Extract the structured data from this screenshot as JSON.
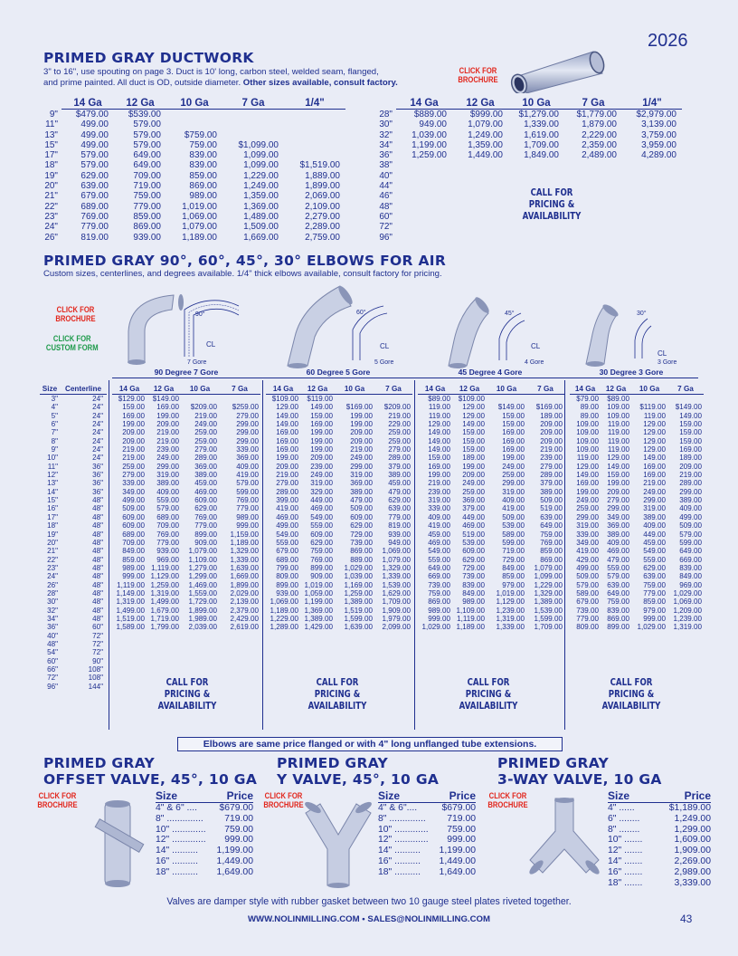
{
  "page": {
    "year": "2026",
    "page_number": "43",
    "footer": "WWW.NOLINMILLING.COM • SALES@NOLINMILLING.COM"
  },
  "ductwork": {
    "title": "PRIMED GRAY DUCTWORK",
    "desc1": "3\" to 16\", use spouting on page 3. Duct is 10' long, carbon steel, welded seam, flanged,",
    "desc2": "and prime painted. All duct is OD, outside diameter. ",
    "desc2_bold": "Other sizes available, consult factory.",
    "click1": "CLICK FOR",
    "click2": "BROCHURE",
    "headers": [
      "14 Ga",
      "12 Ga",
      "10 Ga",
      "7 Ga",
      "1/4\""
    ],
    "left_rows": [
      [
        "9\"",
        "$479.00",
        "$539.00",
        "",
        "",
        ""
      ],
      [
        "11\"",
        "499.00",
        "579.00",
        "",
        "",
        ""
      ],
      [
        "13\"",
        "499.00",
        "579.00",
        "$759.00",
        "",
        ""
      ],
      [
        "15\"",
        "499.00",
        "579.00",
        "759.00",
        "$1,099.00",
        ""
      ],
      [
        "17\"",
        "579.00",
        "649.00",
        "839.00",
        "1,099.00",
        ""
      ],
      [
        "18\"",
        "579.00",
        "649.00",
        "839.00",
        "1,099.00",
        "$1,519.00"
      ],
      [
        "19\"",
        "629.00",
        "709.00",
        "859.00",
        "1,229.00",
        "1,889.00"
      ],
      [
        "20\"",
        "639.00",
        "719.00",
        "869.00",
        "1,249.00",
        "1,899.00"
      ],
      [
        "21\"",
        "679.00",
        "759.00",
        "989.00",
        "1,359.00",
        "2,069.00"
      ],
      [
        "22\"",
        "689.00",
        "779.00",
        "1,019.00",
        "1,369.00",
        "2,109.00"
      ],
      [
        "23\"",
        "769.00",
        "859.00",
        "1,069.00",
        "1,489.00",
        "2,279.00"
      ],
      [
        "24\"",
        "779.00",
        "869.00",
        "1,079.00",
        "1,509.00",
        "2,289.00"
      ],
      [
        "26\"",
        "819.00",
        "939.00",
        "1,189.00",
        "1,669.00",
        "2,759.00"
      ]
    ],
    "right_rows": [
      [
        "28\"",
        "$889.00",
        "$999.00",
        "$1,279.00",
        "$1,779.00",
        "$2,979.00"
      ],
      [
        "30\"",
        "949.00",
        "1,079.00",
        "1,339.00",
        "1,879.00",
        "3,139.00"
      ],
      [
        "32\"",
        "1,039.00",
        "1,249.00",
        "1,619.00",
        "2,229.00",
        "3,759.00"
      ],
      [
        "34\"",
        "1,199.00",
        "1,359.00",
        "1,709.00",
        "2,359.00",
        "3,959.00"
      ],
      [
        "36\"",
        "1,259.00",
        "1,449.00",
        "1,849.00",
        "2,489.00",
        "4,289.00"
      ],
      [
        "38\"",
        "",
        "",
        "",
        "",
        ""
      ],
      [
        "40\"",
        "",
        "",
        "",
        "",
        ""
      ],
      [
        "44\"",
        "",
        "",
        "",
        "",
        ""
      ],
      [
        "46\"",
        "",
        "",
        "",
        "",
        ""
      ],
      [
        "48\"",
        "",
        "",
        "",
        "",
        ""
      ],
      [
        "60\"",
        "",
        "",
        "",
        "",
        ""
      ],
      [
        "72\"",
        "",
        "",
        "",
        "",
        ""
      ],
      [
        "96\"",
        "",
        "",
        "",
        "",
        ""
      ]
    ],
    "call1": "CALL FOR",
    "call2": "PRICING &",
    "call3": "AVAILABILITY"
  },
  "elbows": {
    "title": "PRIMED GRAY  90°, 60°, 45°, 30° ELBOWS FOR AIR",
    "desc": "Custom sizes, centerlines, and degrees available. 1/4\" thick elbows available, consult factory for pricing.",
    "click1": "CLICK FOR",
    "click2": "BROCHURE",
    "click3": "CLICK FOR",
    "click4": "CUSTOM FORM",
    "diagrams": [
      {
        "deg": "90°",
        "cl": "CL",
        "gore": "7 Gore",
        "group": "90 Degree 7 Gore"
      },
      {
        "deg": "60°",
        "cl": "CL",
        "gore": "5 Gore",
        "group": "60 Degree 5 Gore"
      },
      {
        "deg": "45°",
        "cl": "CL",
        "gore": "4 Gore",
        "group": "45 Degree 4 Gore"
      },
      {
        "deg": "30°",
        "cl": "CL",
        "gore": "3 Gore",
        "group": "30 Degree 3 Gore"
      }
    ],
    "size_header": "Size",
    "cl_header": "Centerline",
    "ga_headers": [
      "14 Ga",
      "12 Ga",
      "10 Ga",
      "7 Ga"
    ],
    "sizes": [
      [
        "3\"",
        "24\""
      ],
      [
        "4\"",
        "24\""
      ],
      [
        "5\"",
        "24\""
      ],
      [
        "6\"",
        "24\""
      ],
      [
        "7\"",
        "24\""
      ],
      [
        "8\"",
        "24\""
      ],
      [
        "9\"",
        "24\""
      ],
      [
        "10\"",
        "24\""
      ],
      [
        "11\"",
        "36\""
      ],
      [
        "12\"",
        "36\""
      ],
      [
        "13\"",
        "36\""
      ],
      [
        "14\"",
        "36\""
      ],
      [
        "15\"",
        "48\""
      ],
      [
        "16\"",
        "48\""
      ],
      [
        "17\"",
        "48\""
      ],
      [
        "18\"",
        "48\""
      ],
      [
        "19\"",
        "48\""
      ],
      [
        "20\"",
        "48\""
      ],
      [
        "21\"",
        "48\""
      ],
      [
        "22\"",
        "48\""
      ],
      [
        "23\"",
        "48\""
      ],
      [
        "24\"",
        "48\""
      ],
      [
        "26\"",
        "48\""
      ],
      [
        "28\"",
        "48\""
      ],
      [
        "30\"",
        "48\""
      ],
      [
        "32\"",
        "48\""
      ],
      [
        "34\"",
        "48\""
      ],
      [
        "36\"",
        "60\""
      ],
      [
        "40\"",
        "72\""
      ],
      [
        "48\"",
        "72\""
      ],
      [
        "54\"",
        "72\""
      ],
      [
        "60\"",
        "90\""
      ],
      [
        "66\"",
        "108\""
      ],
      [
        "72\"",
        "108\""
      ],
      [
        "96\"",
        "144\""
      ]
    ],
    "g90": [
      [
        "$129.00",
        "$149.00",
        "",
        ""
      ],
      [
        "159.00",
        "169.00",
        "$209.00",
        "$259.00"
      ],
      [
        "169.00",
        "199.00",
        "219.00",
        "279.00"
      ],
      [
        "199.00",
        "209.00",
        "249.00",
        "299.00"
      ],
      [
        "209.00",
        "219.00",
        "259.00",
        "299.00"
      ],
      [
        "209.00",
        "219.00",
        "259.00",
        "299.00"
      ],
      [
        "219.00",
        "239.00",
        "279.00",
        "339.00"
      ],
      [
        "219.00",
        "249.00",
        "289.00",
        "369.00"
      ],
      [
        "259.00",
        "299.00",
        "369.00",
        "409.00"
      ],
      [
        "279.00",
        "319.00",
        "389.00",
        "419.00"
      ],
      [
        "339.00",
        "389.00",
        "459.00",
        "579.00"
      ],
      [
        "349.00",
        "409.00",
        "469.00",
        "599.00"
      ],
      [
        "499.00",
        "559.00",
        "609.00",
        "769.00"
      ],
      [
        "509.00",
        "579.00",
        "629.00",
        "779.00"
      ],
      [
        "609.00",
        "689.00",
        "769.00",
        "989.00"
      ],
      [
        "609.00",
        "709.00",
        "779.00",
        "999.00"
      ],
      [
        "689.00",
        "769.00",
        "899.00",
        "1,159.00"
      ],
      [
        "709.00",
        "779.00",
        "909.00",
        "1,189.00"
      ],
      [
        "849.00",
        "939.00",
        "1,079.00",
        "1,329.00"
      ],
      [
        "859.00",
        "969.00",
        "1,109.00",
        "1,339.00"
      ],
      [
        "989.00",
        "1,119.00",
        "1,279.00",
        "1,639.00"
      ],
      [
        "999.00",
        "1,129.00",
        "1,299.00",
        "1,669.00"
      ],
      [
        "1,119.00",
        "1,259.00",
        "1,469.00",
        "1,899.00"
      ],
      [
        "1,149.00",
        "1,319.00",
        "1,559.00",
        "2,029.00"
      ],
      [
        "1,319.00",
        "1,499.00",
        "1,729.00",
        "2,139.00"
      ],
      [
        "1,499.00",
        "1,679.00",
        "1,899.00",
        "2,379.00"
      ],
      [
        "1,519.00",
        "1,719.00",
        "1,989.00",
        "2,429.00"
      ],
      [
        "1,589.00",
        "1,799.00",
        "2,039.00",
        "2,619.00"
      ]
    ],
    "g60": [
      [
        "$109.00",
        "$119.00",
        "",
        ""
      ],
      [
        "129.00",
        "149.00",
        "$169.00",
        "$209.00"
      ],
      [
        "149.00",
        "159.00",
        "199.00",
        "219.00"
      ],
      [
        "149.00",
        "169.00",
        "199.00",
        "229.00"
      ],
      [
        "169.00",
        "199.00",
        "209.00",
        "259.00"
      ],
      [
        "169.00",
        "199.00",
        "209.00",
        "259.00"
      ],
      [
        "169.00",
        "199.00",
        "219.00",
        "279.00"
      ],
      [
        "199.00",
        "209.00",
        "249.00",
        "289.00"
      ],
      [
        "209.00",
        "239.00",
        "299.00",
        "379.00"
      ],
      [
        "219.00",
        "249.00",
        "319.00",
        "389.00"
      ],
      [
        "279.00",
        "319.00",
        "369.00",
        "459.00"
      ],
      [
        "289.00",
        "329.00",
        "389.00",
        "479.00"
      ],
      [
        "399.00",
        "449.00",
        "479.00",
        "629.00"
      ],
      [
        "419.00",
        "469.00",
        "509.00",
        "639.00"
      ],
      [
        "469.00",
        "549.00",
        "609.00",
        "779.00"
      ],
      [
        "499.00",
        "559.00",
        "629.00",
        "819.00"
      ],
      [
        "549.00",
        "609.00",
        "729.00",
        "939.00"
      ],
      [
        "559.00",
        "629.00",
        "739.00",
        "949.00"
      ],
      [
        "679.00",
        "759.00",
        "869.00",
        "1,069.00"
      ],
      [
        "689.00",
        "769.00",
        "889.00",
        "1,079.00"
      ],
      [
        "799.00",
        "899.00",
        "1,029.00",
        "1,329.00"
      ],
      [
        "809.00",
        "909.00",
        "1,039.00",
        "1,339.00"
      ],
      [
        "899.00",
        "1,019.00",
        "1,169.00",
        "1,539.00"
      ],
      [
        "939.00",
        "1,059.00",
        "1,259.00",
        "1,629.00"
      ],
      [
        "1,069.00",
        "1,199.00",
        "1,389.00",
        "1,709.00"
      ],
      [
        "1,189.00",
        "1,369.00",
        "1,519.00",
        "1,909.00"
      ],
      [
        "1,229.00",
        "1,389.00",
        "1,599.00",
        "1,979.00"
      ],
      [
        "1,289.00",
        "1,429.00",
        "1,639.00",
        "2,099.00"
      ]
    ],
    "g45": [
      [
        "$89.00",
        "$109.00",
        "",
        ""
      ],
      [
        "119.00",
        "129.00",
        "$149.00",
        "$169.00"
      ],
      [
        "119.00",
        "129.00",
        "159.00",
        "189.00"
      ],
      [
        "129.00",
        "149.00",
        "159.00",
        "209.00"
      ],
      [
        "149.00",
        "159.00",
        "169.00",
        "209.00"
      ],
      [
        "149.00",
        "159.00",
        "169.00",
        "209.00"
      ],
      [
        "149.00",
        "159.00",
        "169.00",
        "219.00"
      ],
      [
        "159.00",
        "189.00",
        "199.00",
        "239.00"
      ],
      [
        "169.00",
        "199.00",
        "249.00",
        "279.00"
      ],
      [
        "199.00",
        "209.00",
        "259.00",
        "289.00"
      ],
      [
        "219.00",
        "249.00",
        "299.00",
        "379.00"
      ],
      [
        "239.00",
        "259.00",
        "319.00",
        "389.00"
      ],
      [
        "319.00",
        "369.00",
        "409.00",
        "509.00"
      ],
      [
        "339.00",
        "379.00",
        "419.00",
        "519.00"
      ],
      [
        "409.00",
        "449.00",
        "509.00",
        "639.00"
      ],
      [
        "419.00",
        "469.00",
        "539.00",
        "649.00"
      ],
      [
        "459.00",
        "519.00",
        "589.00",
        "759.00"
      ],
      [
        "469.00",
        "539.00",
        "599.00",
        "769.00"
      ],
      [
        "549.00",
        "609.00",
        "719.00",
        "859.00"
      ],
      [
        "559.00",
        "629.00",
        "729.00",
        "869.00"
      ],
      [
        "649.00",
        "729.00",
        "849.00",
        "1,079.00"
      ],
      [
        "669.00",
        "739.00",
        "859.00",
        "1,099.00"
      ],
      [
        "739.00",
        "839.00",
        "979.00",
        "1,229.00"
      ],
      [
        "759.00",
        "849.00",
        "1,019.00",
        "1,329.00"
      ],
      [
        "869.00",
        "989.00",
        "1,129.00",
        "1,389.00"
      ],
      [
        "989.00",
        "1,109.00",
        "1,239.00",
        "1,539.00"
      ],
      [
        "999.00",
        "1,119.00",
        "1,319.00",
        "1,599.00"
      ],
      [
        "1,029.00",
        "1,189.00",
        "1,339.00",
        "1,709.00"
      ]
    ],
    "g30": [
      [
        "$79.00",
        "$89.00",
        "",
        ""
      ],
      [
        "89.00",
        "109.00",
        "$119.00",
        "$149.00"
      ],
      [
        "89.00",
        "109.00",
        "119.00",
        "149.00"
      ],
      [
        "109.00",
        "119.00",
        "129.00",
        "159.00"
      ],
      [
        "109.00",
        "119.00",
        "129.00",
        "159.00"
      ],
      [
        "109.00",
        "119.00",
        "129.00",
        "159.00"
      ],
      [
        "109.00",
        "119.00",
        "129.00",
        "169.00"
      ],
      [
        "119.00",
        "129.00",
        "149.00",
        "189.00"
      ],
      [
        "129.00",
        "149.00",
        "169.00",
        "209.00"
      ],
      [
        "149.00",
        "159.00",
        "169.00",
        "219.00"
      ],
      [
        "169.00",
        "199.00",
        "219.00",
        "289.00"
      ],
      [
        "199.00",
        "209.00",
        "249.00",
        "299.00"
      ],
      [
        "249.00",
        "279.00",
        "299.00",
        "389.00"
      ],
      [
        "259.00",
        "299.00",
        "319.00",
        "409.00"
      ],
      [
        "299.00",
        "349.00",
        "389.00",
        "499.00"
      ],
      [
        "319.00",
        "369.00",
        "409.00",
        "509.00"
      ],
      [
        "339.00",
        "389.00",
        "449.00",
        "579.00"
      ],
      [
        "349.00",
        "409.00",
        "459.00",
        "599.00"
      ],
      [
        "419.00",
        "469.00",
        "549.00",
        "649.00"
      ],
      [
        "429.00",
        "479.00",
        "559.00",
        "669.00"
      ],
      [
        "499.00",
        "559.00",
        "629.00",
        "839.00"
      ],
      [
        "509.00",
        "579.00",
        "639.00",
        "849.00"
      ],
      [
        "579.00",
        "639.00",
        "759.00",
        "969.00"
      ],
      [
        "589.00",
        "649.00",
        "779.00",
        "1,029.00"
      ],
      [
        "679.00",
        "759.00",
        "859.00",
        "1,069.00"
      ],
      [
        "739.00",
        "839.00",
        "979.00",
        "1,209.00"
      ],
      [
        "779.00",
        "869.00",
        "999.00",
        "1,239.00"
      ],
      [
        "809.00",
        "899.00",
        "1,029.00",
        "1,319.00"
      ]
    ],
    "call1": "CALL FOR",
    "call2": "PRICING &",
    "call3": "AVAILABILITY",
    "note": "Elbows are same price flanged or with 4\" long unflanged tube extensions."
  },
  "valves": {
    "click1": "CLICK FOR",
    "click2": "BROCHURE",
    "size_header": "Size",
    "price_header": "Price",
    "items": [
      {
        "title1": "PRIMED GRAY",
        "title2": "OFFSET VALVE, 45°, 10 GA",
        "rows": [
          [
            "4\" & 6\" ....",
            "$679.00"
          ],
          [
            "8\" ..............",
            "719.00"
          ],
          [
            "10\" .............",
            "759.00"
          ],
          [
            "12\" .............",
            "999.00"
          ],
          [
            "14\" ..........",
            "1,199.00"
          ],
          [
            "16\" ..........",
            "1,449.00"
          ],
          [
            "18\" ..........",
            "1,649.00"
          ]
        ]
      },
      {
        "title1": "PRIMED GRAY",
        "title2": "Y VALVE, 45°, 10 GA",
        "rows": [
          [
            "4\" & 6\"....",
            "$679.00"
          ],
          [
            "8\" ..............",
            "719.00"
          ],
          [
            "10\" .............",
            "759.00"
          ],
          [
            "12\" .............",
            "999.00"
          ],
          [
            "14\" ..........",
            "1,199.00"
          ],
          [
            "16\" ..........",
            "1,449.00"
          ],
          [
            "18\" ..........",
            "1,649.00"
          ]
        ]
      },
      {
        "title1": "PRIMED GRAY",
        "title2": "3-WAY VALVE, 10 GA",
        "rows": [
          [
            "4\" ......",
            "$1,189.00"
          ],
          [
            "6\" ........",
            "1,249.00"
          ],
          [
            "8\" ........",
            "1,299.00"
          ],
          [
            "10\" .......",
            "1,609.00"
          ],
          [
            "12\" .......",
            "1,909.00"
          ],
          [
            "14\" .......",
            "2,269.00"
          ],
          [
            "16\" .......",
            "2,989.00"
          ],
          [
            "18\" .......",
            "3,339.00"
          ]
        ]
      }
    ],
    "note": "Valves are damper style with rubber gasket between two 10 gauge steel plates riveted together."
  }
}
